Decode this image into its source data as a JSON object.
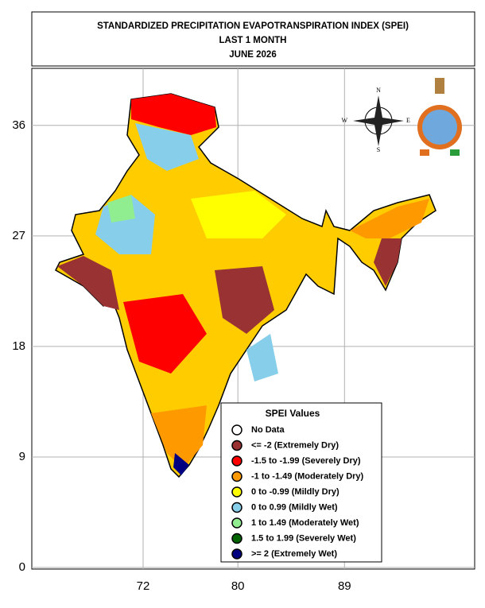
{
  "header": {
    "lines": [
      "STANDARDIZED PRECIPITATION EVAPOTRANSPIRATION INDEX (SPEI)",
      "LAST 1 MONTH",
      "JUNE 2026"
    ]
  },
  "axes": {
    "y_ticks": [
      0,
      9,
      18,
      27,
      36
    ],
    "x_ticks": [
      72,
      80,
      89
    ]
  },
  "compass": {
    "n": "N",
    "e": "E",
    "s": "S",
    "w": "W"
  },
  "legend": {
    "title": "SPEI Values",
    "items": [
      {
        "label": "No Data",
        "color": "#ffffff"
      },
      {
        "label": "<= -2 (Extremely Dry)",
        "color": "#993333"
      },
      {
        "label": "-1.5 to -1.99 (Severely Dry)",
        "color": "#ff0000"
      },
      {
        "label": "-1 to -1.49 (Moderately Dry)",
        "color": "#ff9900"
      },
      {
        "label": "0 to -0.99 (Mildly  Dry)",
        "color": "#ffff00"
      },
      {
        "label": "0 to 0.99 (Mildly  Wet)",
        "color": "#87ceeb"
      },
      {
        "label": "1 to 1.49 (Moderately Wet)",
        "color": "#90ee90"
      },
      {
        "label": "1.5 to 1.99 (Severely Wet)",
        "color": "#006400"
      },
      {
        "label": ">= 2 (Extremely Wet)",
        "color": "#000080"
      }
    ]
  }
}
